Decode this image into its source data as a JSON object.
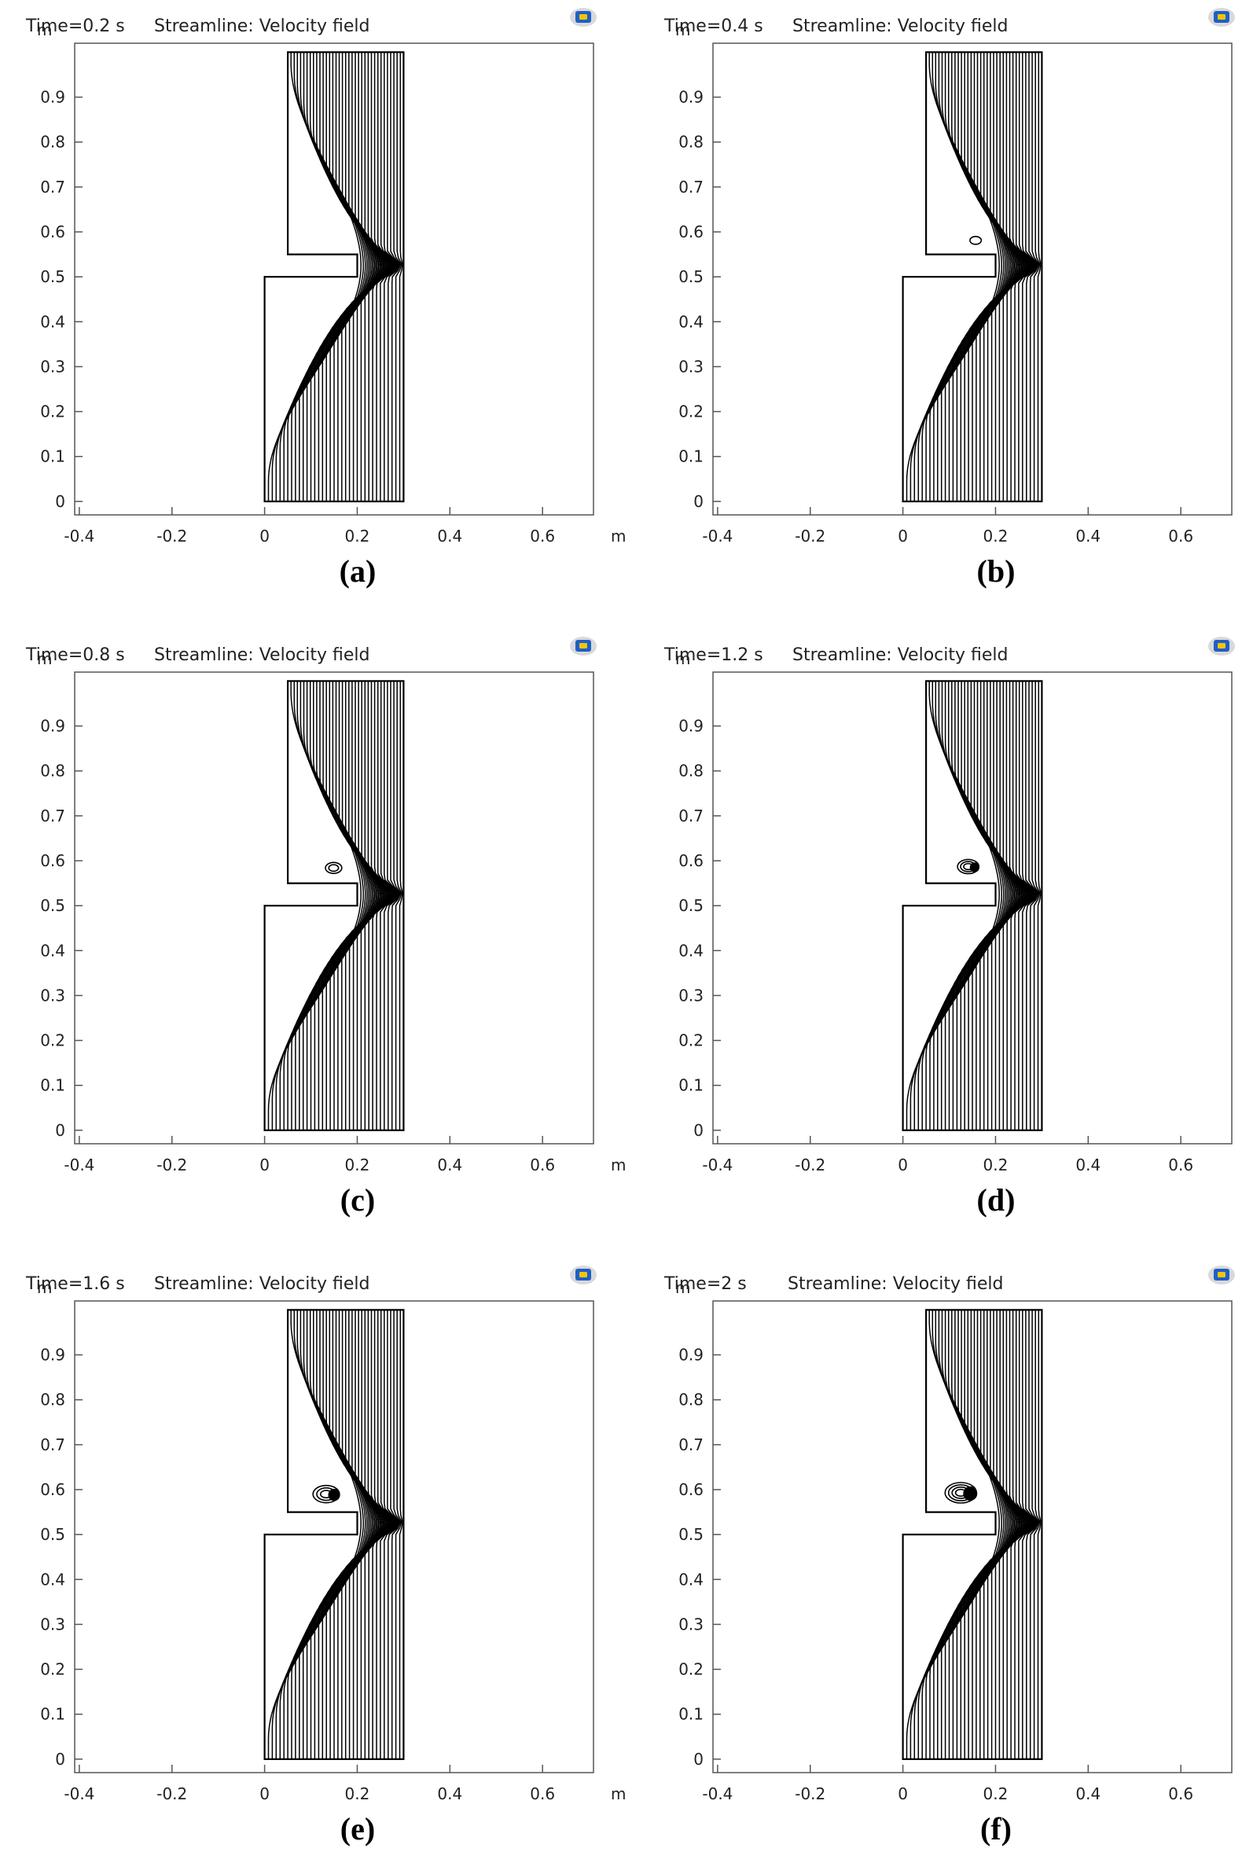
{
  "figure": {
    "panels": [
      {
        "id": "a",
        "time_label": "Time=0.2 s",
        "plot_label": "Streamline: Velocity field",
        "caption": "(a)",
        "vortex_level": 0
      },
      {
        "id": "b",
        "time_label": "Time=0.4 s",
        "plot_label": "Streamline: Velocity field",
        "caption": "(b)",
        "vortex_level": 1
      },
      {
        "id": "c",
        "time_label": "Time=0.8 s",
        "plot_label": "Streamline: Velocity field",
        "caption": "(c)",
        "vortex_level": 2
      },
      {
        "id": "d",
        "time_label": "Time=1.2 s",
        "plot_label": "Streamline: Velocity field",
        "caption": "(d)",
        "vortex_level": 3
      },
      {
        "id": "e",
        "time_label": "Time=1.6 s",
        "plot_label": "Streamline: Velocity field",
        "caption": "(e)",
        "vortex_level": 4
      },
      {
        "id": "f",
        "time_label": "Time=2 s",
        "plot_label": "Streamline: Velocity field",
        "caption": "(f)",
        "vortex_level": 5
      }
    ],
    "axes": {
      "x_unit": "m",
      "y_unit": "m",
      "x_ticks": [
        "-0.4",
        "-0.2",
        "0",
        "0.2",
        "0.4",
        "0.6"
      ],
      "y_ticks": [
        "0",
        "0.1",
        "0.2",
        "0.3",
        "0.4",
        "0.5",
        "0.6",
        "0.7",
        "0.8",
        "0.9"
      ],
      "x_range": [
        -0.41,
        0.71
      ],
      "y_range": [
        -0.03,
        1.02
      ]
    },
    "geometry": {
      "outline": [
        [
          0,
          0
        ],
        [
          0.3,
          0
        ],
        [
          0.3,
          1
        ],
        [
          0.05,
          1
        ],
        [
          0.05,
          0.55
        ],
        [
          0.2,
          0.55
        ],
        [
          0.2,
          0.5
        ],
        [
          0,
          0.5
        ]
      ],
      "channel_right_x": 0.3,
      "lower_channel_left_x": 0,
      "upper_channel_left_x": 0.05,
      "throat": [
        0.2,
        0.525
      ]
    },
    "colors": {
      "stroke": "#000000",
      "axis": "#555555",
      "logo_blue": "#1e5fc8",
      "logo_yellow": "#f5c400"
    },
    "icon": "comsol-logo-icon"
  }
}
